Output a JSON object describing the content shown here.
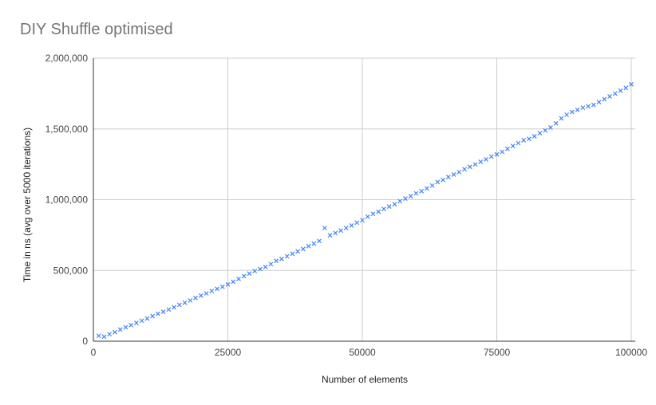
{
  "chart_data": {
    "type": "scatter",
    "title": "DIY Shuffle optimised",
    "xlabel": "Number of elements",
    "ylabel": "Time in ns (avg over 5000 iterations)",
    "xlim": [
      0,
      100000
    ],
    "ylim": [
      0,
      2000000
    ],
    "x_ticks": [
      0,
      25000,
      50000,
      75000,
      100000
    ],
    "x_tick_labels": [
      "0",
      "25000",
      "50000",
      "75000",
      "100000"
    ],
    "y_ticks": [
      0,
      500000,
      1000000,
      1500000,
      2000000
    ],
    "y_tick_labels": [
      "0",
      "500,000",
      "1,000,000",
      "1,500,000",
      "2,000,000"
    ],
    "grid": true,
    "marker": "x",
    "color": "#4285f4",
    "series": [
      {
        "x": [
          1000,
          2000,
          3000,
          4000,
          5000,
          6000,
          7000,
          8000,
          9000,
          10000,
          11000,
          12000,
          13000,
          14000,
          15000,
          16000,
          17000,
          18000,
          19000,
          20000,
          21000,
          22000,
          23000,
          24000,
          25000,
          26000,
          27000,
          28000,
          29000,
          30000,
          31000,
          32000,
          33000,
          34000,
          35000,
          36000,
          37000,
          38000,
          39000,
          40000,
          41000,
          42000,
          43000,
          44000,
          45000,
          46000,
          47000,
          48000,
          49000,
          50000,
          51000,
          52000,
          53000,
          54000,
          55000,
          56000,
          57000,
          58000,
          59000,
          60000,
          61000,
          62000,
          63000,
          64000,
          65000,
          66000,
          67000,
          68000,
          69000,
          70000,
          71000,
          72000,
          73000,
          74000,
          75000,
          76000,
          77000,
          78000,
          79000,
          80000,
          81000,
          82000,
          83000,
          84000,
          85000,
          86000,
          87000,
          88000,
          89000,
          90000,
          91000,
          92000,
          93000,
          94000,
          95000,
          96000,
          97000,
          98000,
          99000,
          100000
        ],
        "y": [
          38000,
          32000,
          50000,
          64000,
          83000,
          98000,
          114000,
          129000,
          145000,
          160000,
          177000,
          194000,
          208000,
          224000,
          240000,
          257000,
          272000,
          288000,
          306000,
          322000,
          338000,
          355000,
          370000,
          385000,
          402000,
          420000,
          440000,
          460000,
          478000,
          496000,
          510000,
          525000,
          545000,
          568000,
          582000,
          600000,
          618000,
          635000,
          652000,
          672000,
          690000,
          708000,
          800000,
          748000,
          765000,
          782000,
          800000,
          818000,
          838000,
          855000,
          880000,
          900000,
          915000,
          935000,
          952000,
          968000,
          990000,
          1008000,
          1025000,
          1045000,
          1060000,
          1080000,
          1100000,
          1125000,
          1140000,
          1160000,
          1178000,
          1195000,
          1215000,
          1232000,
          1250000,
          1268000,
          1285000,
          1305000,
          1320000,
          1338000,
          1360000,
          1380000,
          1400000,
          1420000,
          1430000,
          1448000,
          1470000,
          1490000,
          1510000,
          1540000,
          1575000,
          1600000,
          1620000,
          1635000,
          1650000,
          1660000,
          1670000,
          1690000,
          1710000,
          1730000,
          1750000,
          1770000,
          1790000,
          1815000
        ]
      }
    ]
  }
}
